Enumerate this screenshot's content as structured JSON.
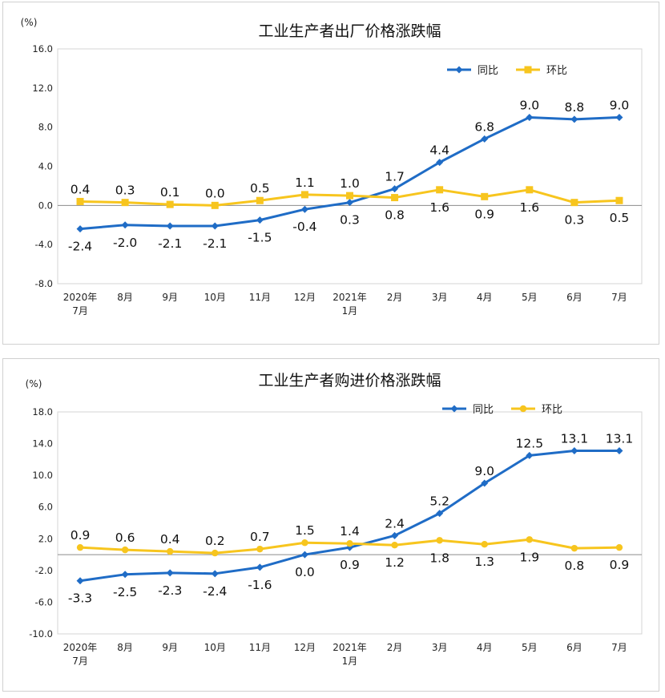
{
  "chart_data": [
    {
      "type": "line",
      "title": "工业生产者出厂价格涨跌幅",
      "unit": "(%)",
      "categories": [
        [
          "2020年",
          "7月"
        ],
        [
          "8月"
        ],
        [
          "9月"
        ],
        [
          "10月"
        ],
        [
          "11月"
        ],
        [
          "12月"
        ],
        [
          "2021年",
          "1月"
        ],
        [
          "2月"
        ],
        [
          "3月"
        ],
        [
          "4月"
        ],
        [
          "5月"
        ],
        [
          "6月"
        ],
        [
          "7月"
        ]
      ],
      "ylim": [
        -8,
        16
      ],
      "yticks": [
        "-8.0",
        "-4.0",
        "0.0",
        "4.0",
        "8.0",
        "12.0",
        "16.0"
      ],
      "grid": false,
      "legend_position": "top-right",
      "series": [
        {
          "name": "同比",
          "color": "#1f6cc6",
          "marker": "diamond",
          "values": [
            -2.4,
            -2.0,
            -2.1,
            -2.1,
            -1.5,
            -0.4,
            0.3,
            1.7,
            4.4,
            6.8,
            9.0,
            8.8,
            9.0
          ],
          "labels": [
            "-2.4",
            "-2.0",
            "-2.1",
            "-2.1",
            "-1.5",
            "-0.4",
            "0.3",
            "1.7",
            "4.4",
            "6.8",
            "9.0",
            "8.8",
            "9.0"
          ]
        },
        {
          "name": "环比",
          "color": "#f7c51e",
          "marker": "square",
          "values": [
            0.4,
            0.3,
            0.1,
            0.0,
            0.5,
            1.1,
            1.0,
            0.8,
            1.6,
            0.9,
            1.6,
            0.3,
            0.5
          ],
          "labels": [
            "0.4",
            "0.3",
            "0.1",
            "0.0",
            "0.5",
            "1.1",
            "1.0",
            "0.8",
            "1.6",
            "0.9",
            "1.6",
            "0.3",
            "0.5"
          ]
        }
      ]
    },
    {
      "type": "line",
      "title": "工业生产者购进价格涨跌幅",
      "unit": "(%)",
      "categories": [
        [
          "2020年",
          "7月"
        ],
        [
          "8月"
        ],
        [
          "9月"
        ],
        [
          "10月"
        ],
        [
          "11月"
        ],
        [
          "12月"
        ],
        [
          "2021年",
          "1月"
        ],
        [
          "2月"
        ],
        [
          "3月"
        ],
        [
          "4月"
        ],
        [
          "5月"
        ],
        [
          "6月"
        ],
        [
          "7月"
        ]
      ],
      "ylim": [
        -10,
        18
      ],
      "yticks": [
        "-10.0",
        "-6.0",
        "-2.0",
        "2.0",
        "6.0",
        "10.0",
        "14.0",
        "18.0"
      ],
      "grid": false,
      "legend_position": "top-right",
      "series": [
        {
          "name": "同比",
          "color": "#1f6cc6",
          "marker": "diamond",
          "values": [
            -3.3,
            -2.5,
            -2.3,
            -2.4,
            -1.6,
            0.0,
            0.9,
            2.4,
            5.2,
            9.0,
            12.5,
            13.1,
            13.1
          ],
          "labels": [
            "-3.3",
            "-2.5",
            "-2.3",
            "-2.4",
            "-1.6",
            "0.0",
            "0.9",
            "2.4",
            "5.2",
            "9.0",
            "12.5",
            "13.1",
            "13.1"
          ]
        },
        {
          "name": "环比",
          "color": "#f7c51e",
          "marker": "circle",
          "values": [
            0.9,
            0.6,
            0.4,
            0.2,
            0.7,
            1.5,
            1.4,
            1.2,
            1.8,
            1.3,
            1.9,
            0.8,
            0.9
          ],
          "labels": [
            "0.9",
            "0.6",
            "0.4",
            "0.2",
            "0.7",
            "1.5",
            "1.4",
            "1.2",
            "1.8",
            "1.3",
            "1.9",
            "0.8",
            "0.9"
          ]
        }
      ]
    }
  ]
}
